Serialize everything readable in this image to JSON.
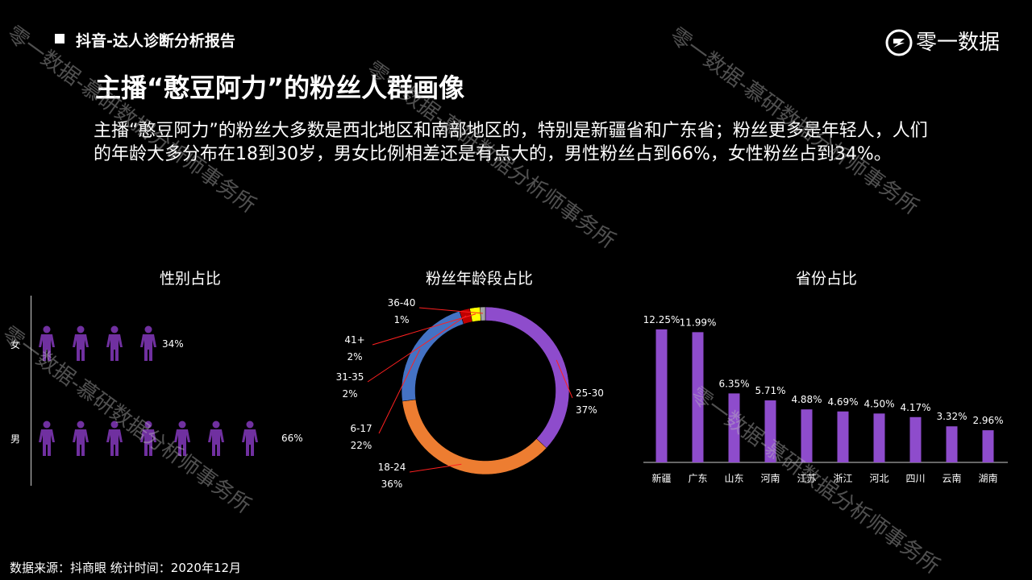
{
  "header": {
    "title": "抖音-达人诊断分析报告"
  },
  "logo": {
    "text": "零一数据"
  },
  "main": {
    "title": "主播“憨豆阿力”的粉丝人群画像",
    "description": "主播“憨豆阿力”的粉丝大多数是西北地区和南部地区的，特别是新疆省和广东省；粉丝更多是年轻人，人们的年龄大多分布在18到30岁，男女比例相差还是有点大的，男性粉丝占到66%，女性粉丝占到34%。"
  },
  "footer": {
    "source": "数据来源：抖商眼 统计时间：2020年12月"
  },
  "watermarks": [
    "零一数据-慕研数据分析师事务所",
    "零一数据-慕研数据分析师事务所",
    "零一数据-慕研数据分析师事务所",
    "零一数据-慕研数据分析师事务所",
    "零一数据-慕研数据分析师事务所"
  ],
  "colors": {
    "purple": "#8e4ccc",
    "blue": "#4472c4",
    "orange": "#ed7d31",
    "red": "#c00000",
    "yellow": "#ffff00",
    "gray": "#a5a5a5",
    "person": "#7030a0"
  },
  "chart_data": [
    {
      "type": "pictograph",
      "title": "性别占比",
      "categories": [
        "女",
        "男"
      ],
      "values": [
        34,
        66
      ],
      "labels": [
        "34%",
        "66%"
      ],
      "icon_counts": [
        4,
        7
      ]
    },
    {
      "type": "pie",
      "title": "粉丝年龄段占比",
      "categories": [
        "25-30",
        "18-24",
        "6-17",
        "31-35",
        "41+",
        "36-40"
      ],
      "values": [
        37,
        36,
        22,
        2,
        2,
        1
      ],
      "labels": [
        "37%",
        "36%",
        "22%",
        "2%",
        "2%",
        "1%"
      ],
      "colors": [
        "#8e4ccc",
        "#ed7d31",
        "#4472c4",
        "#c00000",
        "#ffff00",
        "#a5a5a5"
      ]
    },
    {
      "type": "bar",
      "title": "省份占比",
      "categories": [
        "新疆",
        "广东",
        "山东",
        "河南",
        "江苏",
        "浙江",
        "河北",
        "四川",
        "云南",
        "湖南"
      ],
      "values": [
        12.25,
        11.99,
        6.35,
        5.71,
        4.88,
        4.69,
        4.5,
        4.17,
        3.32,
        2.96
      ],
      "labels": [
        "12.25%",
        "11.99%",
        "6.35%",
        "5.71%",
        "4.88%",
        "4.69%",
        "4.50%",
        "4.17%",
        "3.32%",
        "2.96%"
      ],
      "ylim": [
        0,
        13.5
      ],
      "color": "#8e4ccc"
    }
  ]
}
